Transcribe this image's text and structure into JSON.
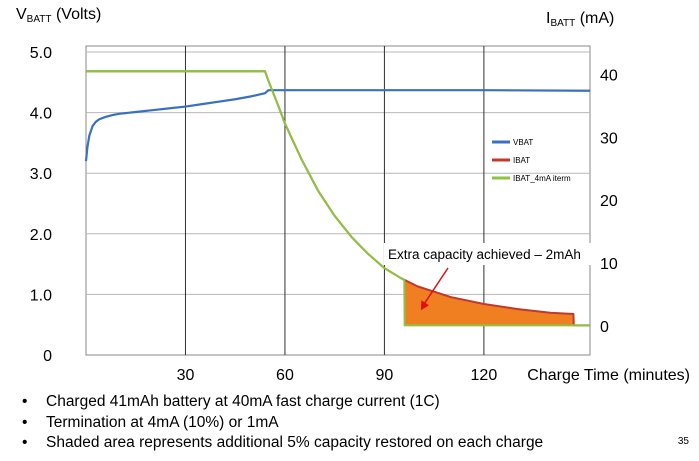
{
  "chart_data": {
    "type": "line",
    "left_axis": {
      "title_main": "V",
      "title_sub": "BATT",
      "title_unit": " (Volts)",
      "range": [
        0,
        5.0
      ],
      "ticks": [
        "5.0",
        "4.0",
        "3.0",
        "2.0",
        "1.0",
        "0"
      ]
    },
    "right_axis": {
      "title_main": "I",
      "title_sub": "BATT",
      "title_unit": " (mA)",
      "range": [
        0,
        40
      ],
      "ticks": [
        "40",
        "30",
        "20",
        "10",
        "0"
      ]
    },
    "x_axis": {
      "label": "Charge Time (minutes)",
      "range": [
        0,
        152
      ],
      "ticks": [
        "30",
        "60",
        "90",
        "120"
      ]
    },
    "grid": {
      "vertical": true,
      "horizontal": true
    },
    "legend": {
      "position": "right-middle"
    },
    "annotation": {
      "text": "Extra capacity achieved – 2mAh",
      "arrow_to": [
        101,
        2.5
      ]
    },
    "series": [
      {
        "name": "VBAT",
        "axis": "left",
        "color": "#3a70c0",
        "x": [
          0,
          0.4,
          1,
          2,
          3,
          4,
          6,
          8,
          10,
          15,
          20,
          25,
          30,
          35,
          40,
          45,
          50,
          54,
          55,
          60,
          80,
          100,
          120,
          152
        ],
        "y": [
          3.2,
          3.42,
          3.62,
          3.78,
          3.85,
          3.89,
          3.93,
          3.96,
          3.98,
          4.01,
          4.04,
          4.07,
          4.1,
          4.14,
          4.18,
          4.22,
          4.27,
          4.32,
          4.37,
          4.37,
          4.37,
          4.37,
          4.37,
          4.36
        ]
      },
      {
        "name": "IBAT",
        "axis": "right",
        "color": "#c0392b",
        "x": [
          0,
          54,
          55,
          58,
          60,
          65,
          70,
          75,
          80,
          85,
          90,
          95,
          100,
          110,
          120,
          130,
          140,
          147,
          147.1,
          152
        ],
        "y": [
          40.5,
          40.5,
          39,
          35,
          32.2,
          26.5,
          21.5,
          17.5,
          14.2,
          11.5,
          9.2,
          7.6,
          6.3,
          4.6,
          3.5,
          2.7,
          2.1,
          1.9,
          0.1,
          0.1
        ]
      },
      {
        "name": "IBAT_4mA iterm",
        "axis": "right",
        "color": "#8cc342",
        "x": [
          0,
          54,
          55,
          58,
          60,
          65,
          70,
          75,
          80,
          85,
          90,
          95,
          96,
          96.1,
          152
        ],
        "y": [
          40.5,
          40.5,
          39,
          35,
          32.2,
          26.5,
          21.5,
          17.5,
          14.2,
          11.5,
          9.2,
          7.6,
          7.3,
          0.1,
          0.1
        ]
      }
    ],
    "shaded_region": {
      "x_start": 96,
      "x_end": 147,
      "color": "#f07f22"
    }
  },
  "bullets": [
    "Charged 41mAh battery at 40mA fast charge current (1C)",
    "Termination at 4mA (10%) or 1mA",
    "Shaded area represents additional 5% capacity restored on each charge"
  ],
  "page_number": "35"
}
